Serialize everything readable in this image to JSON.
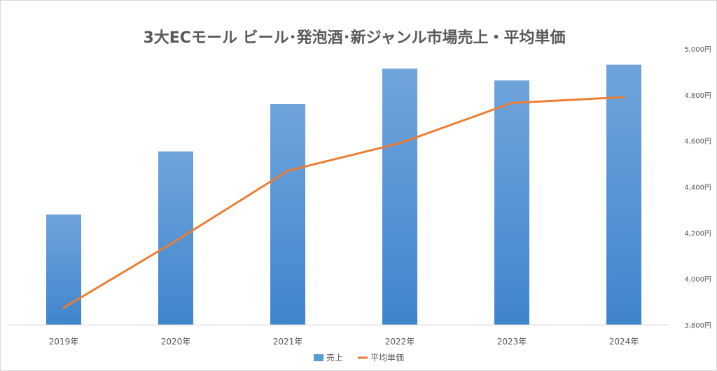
{
  "chart_data": {
    "type": "bar",
    "title": "3大ECモール ビール･発泡酒･新ジャンル市場売上・平均単価",
    "categories": [
      "2019年",
      "2020年",
      "2021年",
      "2022年",
      "2023年",
      "2024年"
    ],
    "series": [
      {
        "name": "売上",
        "type": "bar",
        "axis": "primary",
        "values": [
          1.4,
          2.2,
          2.8,
          3.25,
          3.1,
          3.3
        ],
        "color": "#5B9BD5"
      },
      {
        "name": "平均単価",
        "type": "line",
        "axis": "secondary",
        "values": [
          3875,
          4165,
          4470,
          4590,
          4765,
          4790
        ],
        "color": "#ED7D31"
      }
    ],
    "primary_axis": {
      "ylim": [
        0,
        3.5
      ],
      "visible": false
    },
    "secondary_axis": {
      "ylim": [
        3800,
        5000
      ],
      "ticks": [
        3800,
        4000,
        4200,
        4400,
        4600,
        4800,
        5000
      ],
      "tick_labels": [
        "3,800円",
        "4,000円",
        "4,200円",
        "4,400円",
        "4,600円",
        "4,800円",
        "5,000円"
      ],
      "position": "right"
    },
    "grid": false,
    "legend": {
      "position": "bottom",
      "entries": [
        "売上",
        "平均単価"
      ]
    }
  }
}
